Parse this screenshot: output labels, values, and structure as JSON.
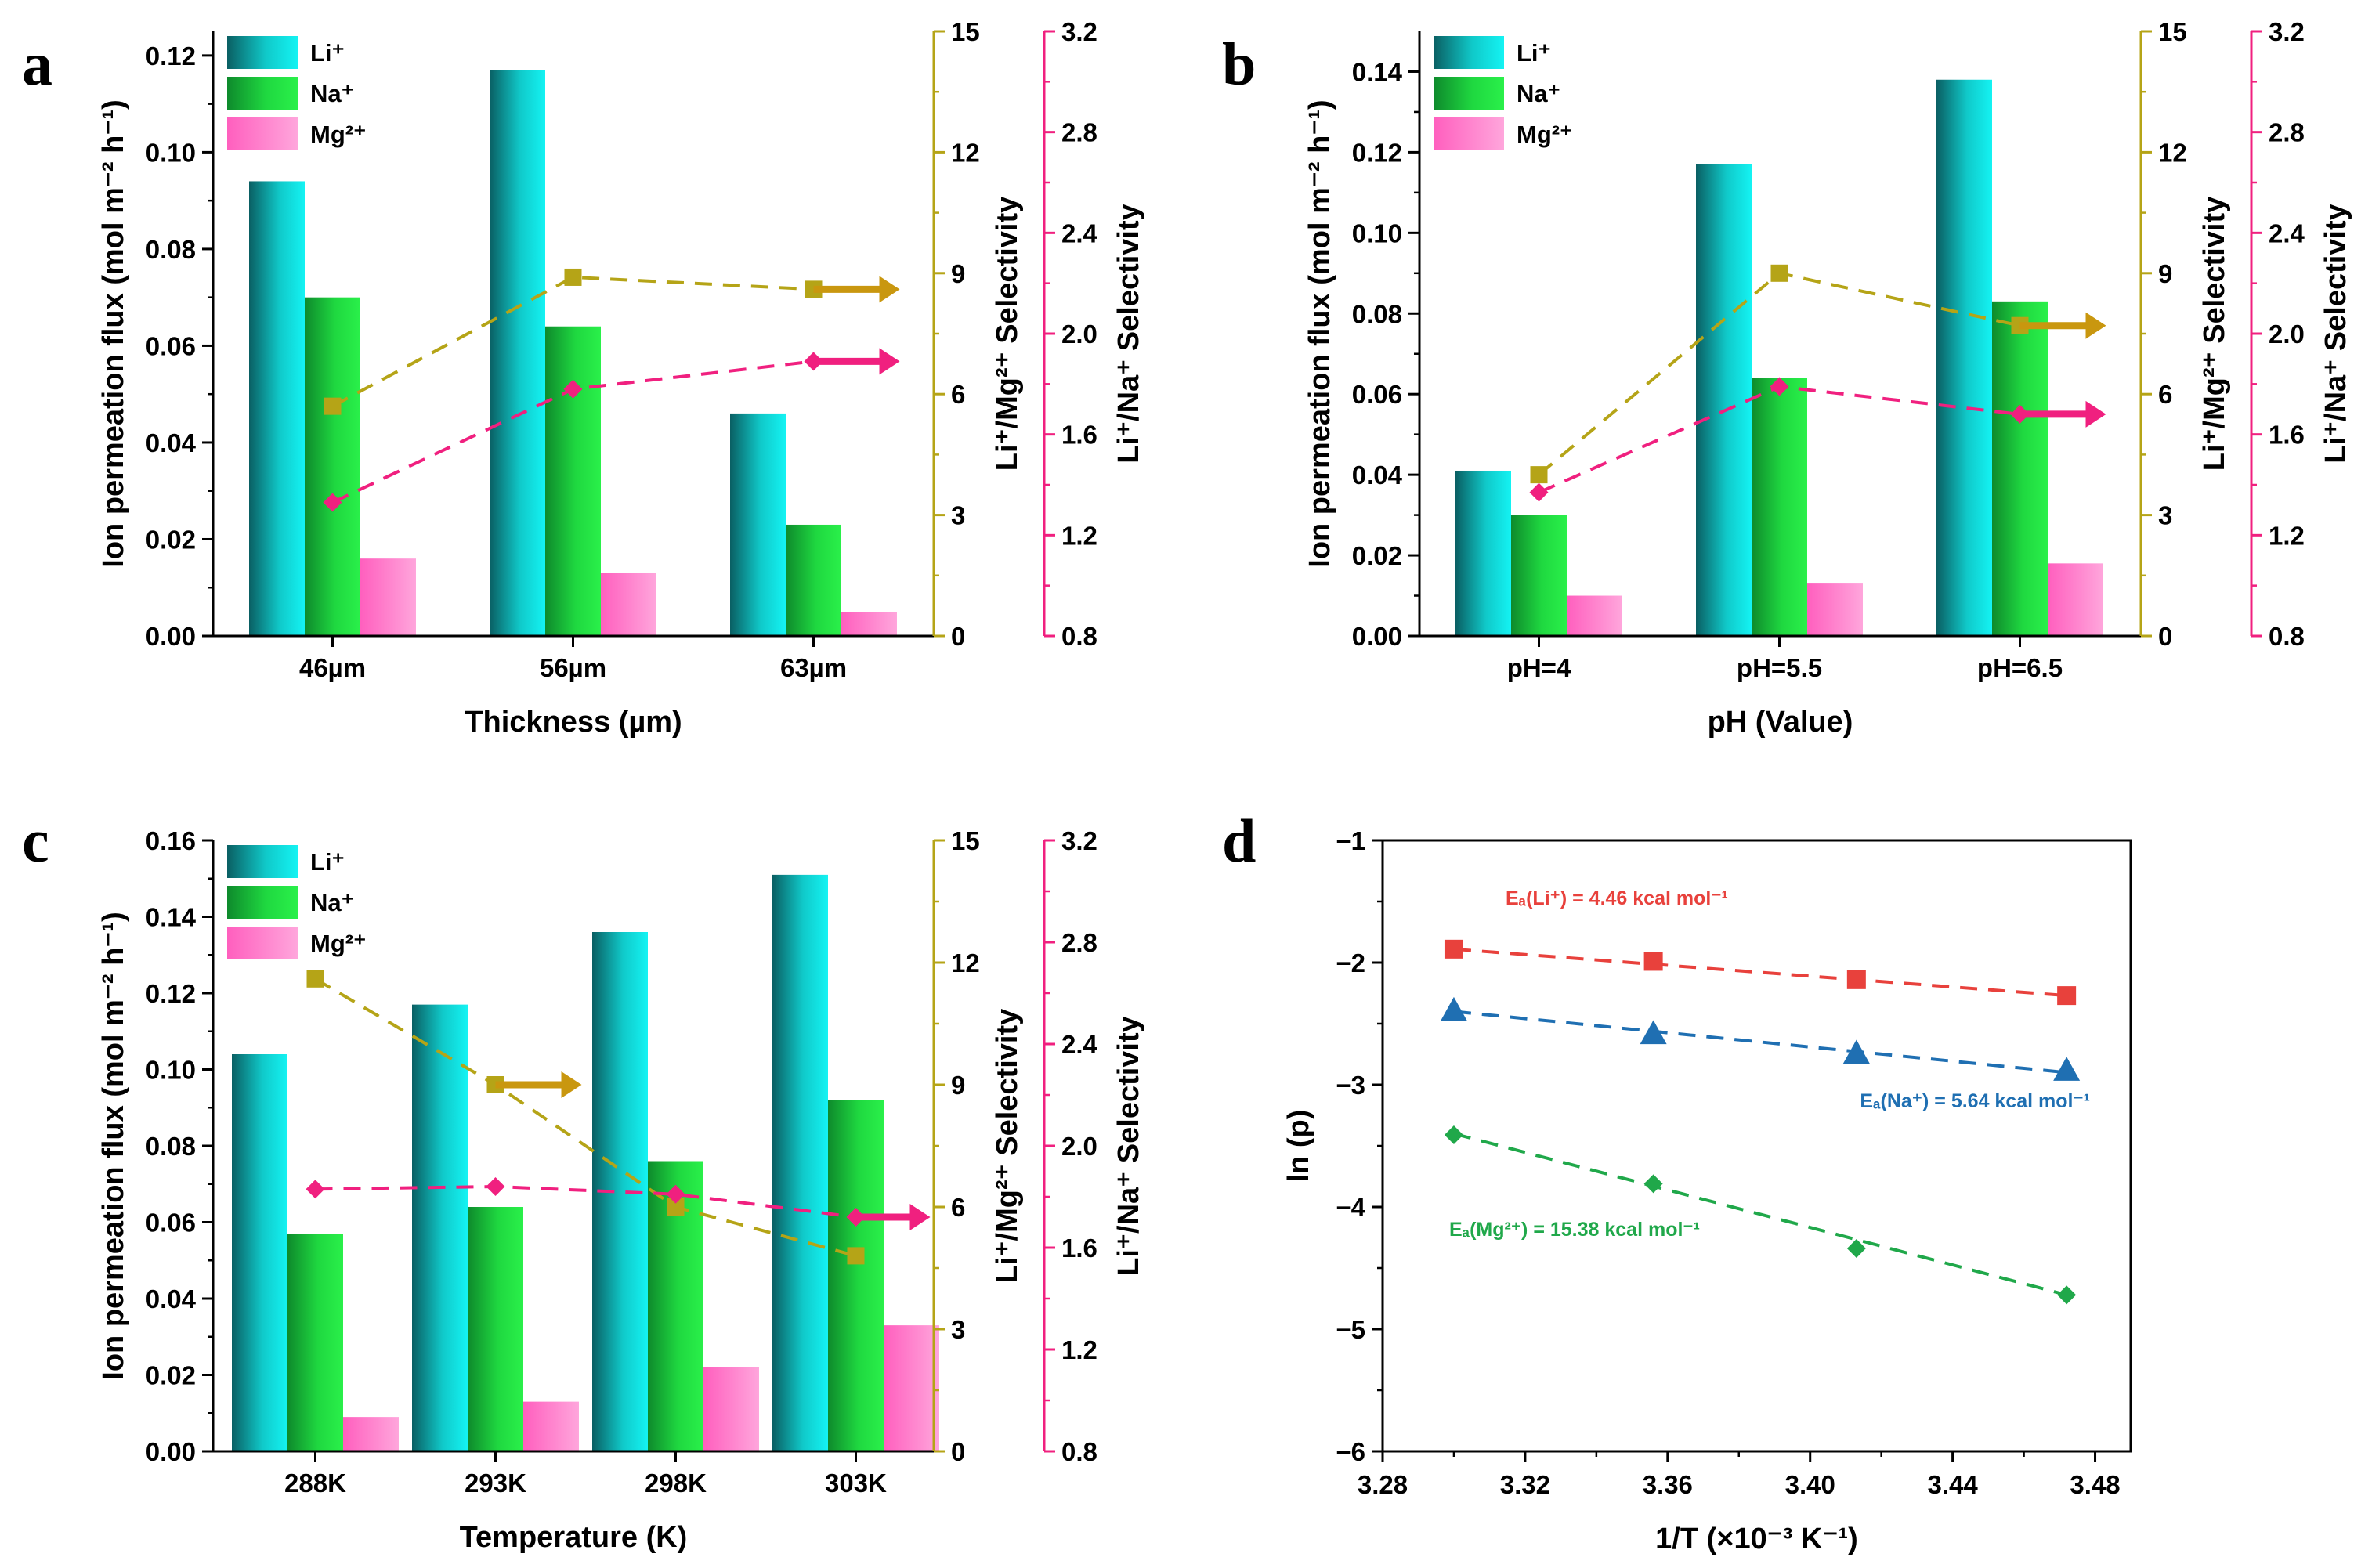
{
  "chart_data": [
    {
      "panel": "a",
      "type": "bar",
      "xlabel": "Thickness (µm)",
      "ylabel": "Ion permeation flux (mol m⁻² h⁻¹)",
      "y2label": "Li⁺/Mg²⁺ Selectivity",
      "y3label": "Li⁺/Na⁺ Selectivity",
      "ylim": [
        0,
        0.125
      ],
      "y2lim": [
        0,
        15
      ],
      "y3lim": [
        0.8,
        3.2
      ],
      "yticks": [
        "0.00",
        "0.02",
        "0.04",
        "0.06",
        "0.08",
        "0.10",
        "0.12"
      ],
      "y2ticks": [
        "0",
        "3",
        "6",
        "9",
        "12",
        "15"
      ],
      "y3ticks": [
        "0.8",
        "1.2",
        "1.6",
        "2.0",
        "2.4",
        "2.8",
        "3.2"
      ],
      "categories": [
        "46µm",
        "56µm",
        "63µm"
      ],
      "series": [
        {
          "name": "Li⁺",
          "values": [
            0.094,
            0.117,
            0.046
          ]
        },
        {
          "name": "Na⁺",
          "values": [
            0.07,
            0.064,
            0.023
          ]
        },
        {
          "name": "Mg²⁺",
          "values": [
            0.016,
            0.013,
            0.005
          ]
        }
      ],
      "selectivity_mg": [
        5.7,
        8.9,
        8.6
      ],
      "selectivity_na": [
        1.33,
        1.78,
        1.89
      ],
      "legend": [
        "Li⁺",
        "Na⁺",
        "Mg²⁺"
      ]
    },
    {
      "panel": "b",
      "type": "bar",
      "xlabel": "pH (Value)",
      "ylabel": "Ion permeation flux (mol m⁻² h⁻¹)",
      "y2label": "Li⁺/Mg²⁺ Selectivity",
      "y3label": "Li⁺/Na⁺ Selectivity",
      "ylim": [
        0,
        0.15
      ],
      "y2lim": [
        0,
        15
      ],
      "y3lim": [
        0.8,
        3.2
      ],
      "yticks": [
        "0.00",
        "0.02",
        "0.04",
        "0.06",
        "0.08",
        "0.10",
        "0.12",
        "0.14"
      ],
      "y2ticks": [
        "0",
        "3",
        "6",
        "9",
        "12",
        "15"
      ],
      "y3ticks": [
        "0.8",
        "1.2",
        "1.6",
        "2.0",
        "2.4",
        "2.8",
        "3.2"
      ],
      "categories": [
        "pH=4",
        "pH=5.5",
        "pH=6.5"
      ],
      "series": [
        {
          "name": "Li⁺",
          "values": [
            0.041,
            0.117,
            0.138
          ]
        },
        {
          "name": "Na⁺",
          "values": [
            0.03,
            0.064,
            0.083
          ]
        },
        {
          "name": "Mg²⁺",
          "values": [
            0.01,
            0.013,
            0.018
          ]
        }
      ],
      "selectivity_mg": [
        4.0,
        9.0,
        7.7
      ],
      "selectivity_na": [
        1.37,
        1.79,
        1.68
      ],
      "legend": [
        "Li⁺",
        "Na⁺",
        "Mg²⁺"
      ]
    },
    {
      "panel": "c",
      "type": "bar",
      "xlabel": "Temperature (K)",
      "ylabel": "Ion permeation flux (mol m⁻² h⁻¹)",
      "y2label": "Li⁺/Mg²⁺ Selectivity",
      "y3label": "Li⁺/Na⁺ Selectivity",
      "ylim": [
        0,
        0.16
      ],
      "y2lim": [
        0,
        15
      ],
      "y3lim": [
        0.8,
        3.2
      ],
      "yticks": [
        "0.00",
        "0.02",
        "0.04",
        "0.06",
        "0.08",
        "0.10",
        "0.12",
        "0.14",
        "0.16"
      ],
      "y2ticks": [
        "0",
        "3",
        "6",
        "9",
        "12",
        "15"
      ],
      "y3ticks": [
        "0.8",
        "1.2",
        "1.6",
        "2.0",
        "2.4",
        "2.8",
        "3.2"
      ],
      "categories": [
        "288K",
        "293K",
        "298K",
        "303K"
      ],
      "series": [
        {
          "name": "Li⁺",
          "values": [
            0.104,
            0.117,
            0.136,
            0.151
          ]
        },
        {
          "name": "Na⁺",
          "values": [
            0.057,
            0.064,
            0.076,
            0.092
          ]
        },
        {
          "name": "Mg²⁺",
          "values": [
            0.009,
            0.013,
            0.022,
            0.033
          ]
        }
      ],
      "selectivity_mg": [
        11.6,
        9.0,
        6.0,
        4.8
      ],
      "selectivity_na": [
        1.83,
        1.84,
        1.81,
        1.72
      ],
      "legend": [
        "Li⁺",
        "Na⁺",
        "Mg²⁺"
      ]
    },
    {
      "panel": "d",
      "type": "scatter",
      "xlabel": "1/T (×10⁻³ K⁻¹)",
      "ylabel": "ln (p)",
      "xlim": [
        3.28,
        3.49
      ],
      "ylim": [
        -6,
        -1
      ],
      "xticks": [
        3.28,
        3.32,
        3.36,
        3.4,
        3.44,
        3.48
      ],
      "yticks": [
        -6,
        -5,
        -4,
        -3,
        -2,
        -1
      ],
      "xtick_labels": [
        "3.28",
        "3.32",
        "3.36",
        "3.40",
        "3.44",
        "3.48"
      ],
      "ytick_labels": [
        "−6",
        "−5",
        "−4",
        "−3",
        "−2",
        "−1"
      ],
      "series": [
        {
          "name": "Li⁺",
          "marker": "square",
          "color": "#e8413c",
          "x": [
            3.3,
            3.356,
            3.413,
            3.472
          ],
          "y": [
            -1.89,
            -1.99,
            -2.14,
            -2.27
          ],
          "fit": [
            [
              3.3,
              -1.89
            ],
            [
              3.472,
              -2.27
            ]
          ],
          "label": "Eₐ(Li⁺) = 4.46 kcal mol⁻¹"
        },
        {
          "name": "Na⁺",
          "marker": "triangle",
          "color": "#1f6fb2",
          "x": [
            3.3,
            3.356,
            3.413,
            3.472
          ],
          "y": [
            -2.39,
            -2.58,
            -2.74,
            -2.88
          ],
          "fit": [
            [
              3.3,
              -2.4
            ],
            [
              3.472,
              -2.9
            ]
          ],
          "label": "Eₐ(Na⁺) = 5.64 kcal mol⁻¹"
        },
        {
          "name": "Mg²⁺",
          "marker": "diamond",
          "color": "#20a84a",
          "x": [
            3.3,
            3.356,
            3.413,
            3.472
          ],
          "y": [
            -3.41,
            -3.81,
            -4.34,
            -4.72
          ],
          "fit": [
            [
              3.3,
              -3.4
            ],
            [
              3.472,
              -4.72
            ]
          ],
          "label": "Eₐ(Mg²⁺) = 15.38 kcal mol⁻¹"
        }
      ]
    }
  ],
  "colors": {
    "li_light": "#11eeee",
    "li_dark": "#0a5f63",
    "na_light": "#22ee44",
    "na_dark": "#0e8a2c",
    "mg_light": "#ff7ac8",
    "mg_dark": "#ff99d6",
    "sel_mg": "#b5a417",
    "sel_mg_arrow": "#c9970f",
    "sel_na": "#f0207f"
  }
}
